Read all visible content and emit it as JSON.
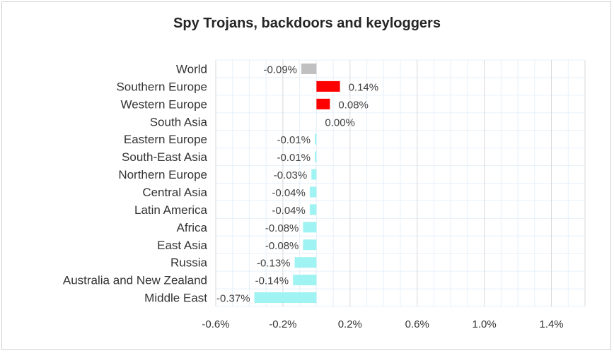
{
  "chart_data": {
    "type": "bar",
    "orientation": "horizontal",
    "title": "Spy Trojans, backdoors and keyloggers",
    "xlabel": "",
    "ylabel": "",
    "categories": [
      "World",
      "Southern Europe",
      "Western Europe",
      "South Asia",
      "Eastern Europe",
      "South-East Asia",
      "Northern Europe",
      "Central Asia",
      "Latin America",
      "Africa",
      "East Asia",
      "Russia",
      "Australia and New Zealand",
      "Middle East"
    ],
    "values": [
      -0.09,
      0.14,
      0.08,
      0.0,
      -0.01,
      -0.01,
      -0.03,
      -0.04,
      -0.04,
      -0.08,
      -0.08,
      -0.13,
      -0.14,
      -0.37
    ],
    "value_labels": [
      "-0.09%",
      "0.14%",
      "0.08%",
      "0.00%",
      "-0.01%",
      "-0.01%",
      "-0.03%",
      "-0.04%",
      "-0.04%",
      "-0.08%",
      "-0.08%",
      "-0.13%",
      "-0.14%",
      "-0.37%"
    ],
    "bar_colors": [
      "#c0c0c0",
      "#ff0000",
      "#ff0000",
      "#9ff3f3",
      "#9ff3f3",
      "#9ff3f3",
      "#9ff3f3",
      "#9ff3f3",
      "#9ff3f3",
      "#9ff3f3",
      "#9ff3f3",
      "#9ff3f3",
      "#9ff3f3",
      "#9ff3f3"
    ],
    "xlim": [
      -0.6,
      1.6
    ],
    "x_ticks": [
      -0.6,
      -0.2,
      0.2,
      0.6,
      1.0,
      1.4
    ],
    "x_tick_labels": [
      "-0.6%",
      "-0.2%",
      "0.2%",
      "0.6%",
      "1.0%",
      "1.4%"
    ],
    "x_minor_step": 0.1,
    "unit": "%",
    "grid": true,
    "legend": "none",
    "colors": {
      "gridline": "#d9d9d9",
      "minor_gridline": "#e6f0fa"
    }
  }
}
